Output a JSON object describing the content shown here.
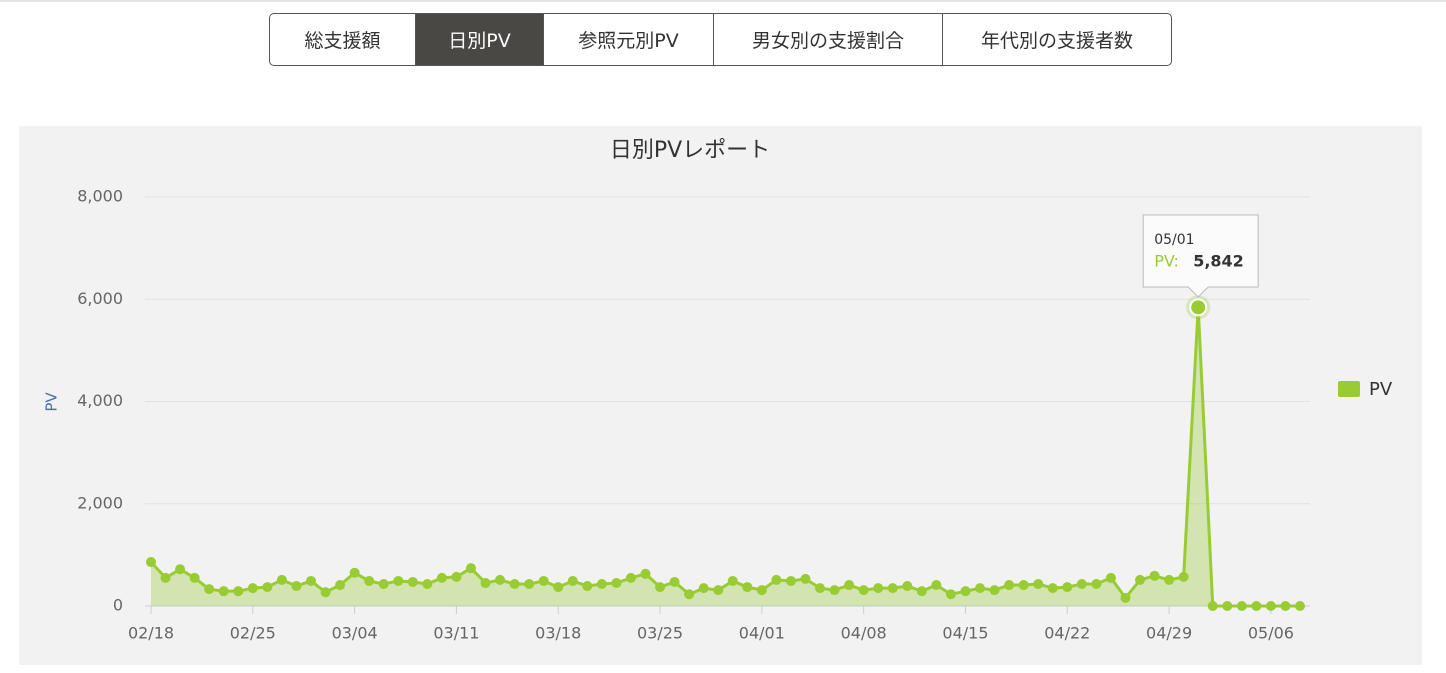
{
  "tabs": [
    "総支援額",
    "日別PV",
    "参照元別PV",
    "男女別の支援割合",
    "年代別の支援者数"
  ],
  "active_tab": 1,
  "chart_data": {
    "type": "area",
    "title": "日別PVレポート",
    "y_label": "PV",
    "categories": [
      "02/18",
      null,
      null,
      null,
      null,
      null,
      null,
      "02/25",
      null,
      null,
      null,
      null,
      null,
      null,
      "03/04",
      null,
      null,
      null,
      null,
      null,
      null,
      "03/11",
      null,
      null,
      null,
      null,
      null,
      null,
      "03/18",
      null,
      null,
      null,
      null,
      null,
      null,
      "03/25",
      null,
      null,
      null,
      null,
      null,
      null,
      "04/01",
      null,
      null,
      null,
      null,
      null,
      null,
      "04/08",
      null,
      null,
      null,
      null,
      null,
      null,
      "04/15",
      null,
      null,
      null,
      null,
      null,
      null,
      "04/22",
      null,
      null,
      null,
      null,
      null,
      null,
      "04/29",
      null,
      null,
      null,
      null,
      null,
      null,
      "05/06",
      null,
      null
    ],
    "series": [
      {
        "name": "PV",
        "color": "#99cc33",
        "values": [
          860,
          550,
          720,
          550,
          330,
          290,
          290,
          350,
          370,
          510,
          390,
          490,
          270,
          410,
          650,
          490,
          430,
          490,
          470,
          430,
          550,
          570,
          740,
          450,
          510,
          430,
          430,
          490,
          370,
          490,
          390,
          430,
          450,
          550,
          630,
          370,
          470,
          230,
          350,
          310,
          490,
          370,
          310,
          510,
          490,
          530,
          350,
          310,
          410,
          310,
          350,
          350,
          390,
          290,
          410,
          230,
          290,
          350,
          310,
          410,
          410,
          430,
          350,
          370,
          430,
          430,
          550,
          160,
          510,
          590,
          510,
          570,
          5842,
          0,
          0,
          0,
          0,
          0,
          0,
          0
        ]
      }
    ],
    "ylim": [
      0,
      8000
    ],
    "yticks": [
      0,
      {
        "value": 2000,
        "label": "2,000"
      },
      {
        "value": 4000,
        "label": "4,000"
      },
      {
        "value": 6000,
        "label": "6,000"
      },
      {
        "value": 8000,
        "label": "8,000"
      }
    ],
    "grid": true,
    "legend": "right",
    "tooltip": {
      "index": 72,
      "date": "05/01",
      "label": "PV:",
      "value": 5842,
      "value_label": "5,842"
    }
  }
}
